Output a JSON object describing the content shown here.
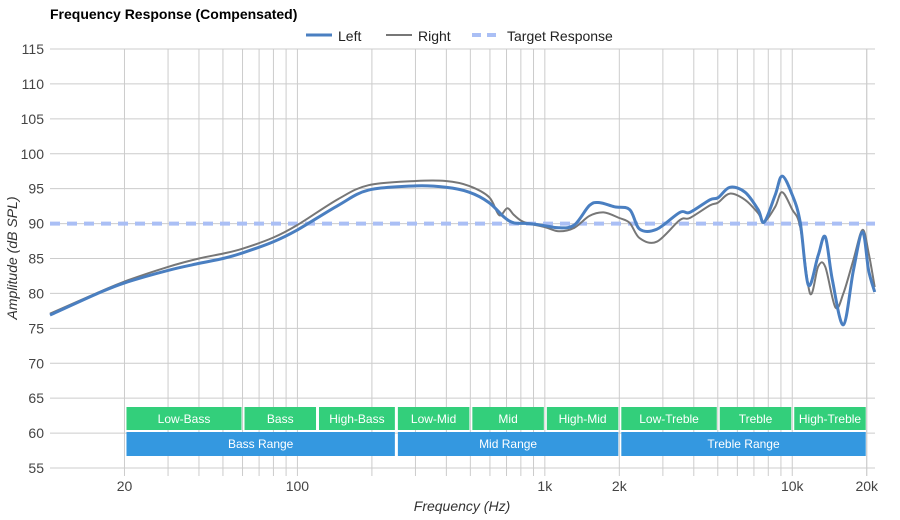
{
  "chart_data": {
    "type": "line",
    "title": "Frequency Response (Compensated)",
    "xlabel": "Frequency (Hz)",
    "ylabel": "Amplitude (dB SPL)",
    "xscale": "log",
    "xlim": [
      10,
      21600
    ],
    "ylim": [
      55,
      115
    ],
    "yticks": [
      55,
      60,
      65,
      70,
      75,
      80,
      85,
      90,
      95,
      100,
      105,
      110,
      115
    ],
    "xticks": [
      {
        "value": 20,
        "label": "20"
      },
      {
        "value": 100,
        "label": "100"
      },
      {
        "value": 1000,
        "label": "1k"
      },
      {
        "value": 2000,
        "label": "2k"
      },
      {
        "value": 10000,
        "label": "10k"
      },
      {
        "value": 20000,
        "label": "20k"
      }
    ],
    "grid": true,
    "legend_position": "top-center",
    "legend": [
      "Left",
      "Right",
      "Target Response"
    ],
    "series": [
      {
        "name": "Left",
        "color": "#4a7fc1",
        "points": [
          [
            10,
            76.9
          ],
          [
            15.6,
            80.0
          ],
          [
            20,
            81.5
          ],
          [
            30,
            83.3
          ],
          [
            40,
            84.3
          ],
          [
            50,
            85.0
          ],
          [
            60,
            85.8
          ],
          [
            80,
            87.4
          ],
          [
            100,
            89.1
          ],
          [
            146,
            92.6
          ],
          [
            194,
            94.8
          ],
          [
            300,
            95.4
          ],
          [
            398,
            95.2
          ],
          [
            494,
            94.5
          ],
          [
            595,
            93.0
          ],
          [
            686,
            90.9
          ],
          [
            752,
            90.1
          ],
          [
            866,
            90.0
          ],
          [
            1000,
            89.7
          ],
          [
            1140,
            89.4
          ],
          [
            1316,
            89.8
          ],
          [
            1515,
            92.6
          ],
          [
            1663,
            93.0
          ],
          [
            1915,
            92.4
          ],
          [
            2203,
            92.0
          ],
          [
            2417,
            89.2
          ],
          [
            2834,
            89.2
          ],
          [
            3513,
            91.6
          ],
          [
            3855,
            91.6
          ],
          [
            4645,
            93.4
          ],
          [
            5012,
            93.7
          ],
          [
            5600,
            95.2
          ],
          [
            6444,
            94.5
          ],
          [
            7278,
            92.0
          ],
          [
            7696,
            90.2
          ],
          [
            8531,
            94.1
          ],
          [
            9105,
            96.8
          ],
          [
            10000,
            94.1
          ],
          [
            10770,
            90.2
          ],
          [
            11610,
            81.2
          ],
          [
            12740,
            85.5
          ],
          [
            13600,
            88.1
          ],
          [
            14530,
            81.9
          ],
          [
            16100,
            75.5
          ],
          [
            17670,
            83.3
          ],
          [
            19230,
            88.8
          ],
          [
            20360,
            83.3
          ],
          [
            21540,
            80.2
          ]
        ]
      },
      {
        "name": "Right",
        "color": "#777777",
        "points": [
          [
            10,
            77.1
          ],
          [
            15.6,
            80.1
          ],
          [
            20,
            81.7
          ],
          [
            30,
            83.8
          ],
          [
            40,
            85.0
          ],
          [
            50,
            85.7
          ],
          [
            60,
            86.4
          ],
          [
            80,
            88.0
          ],
          [
            100,
            89.8
          ],
          [
            146,
            93.5
          ],
          [
            194,
            95.5
          ],
          [
            300,
            96.1
          ],
          [
            398,
            96.1
          ],
          [
            494,
            95.4
          ],
          [
            595,
            93.8
          ],
          [
            654,
            91.2
          ],
          [
            705,
            92.2
          ],
          [
            752,
            91.2
          ],
          [
            825,
            90.2
          ],
          [
            1000,
            89.5
          ],
          [
            1140,
            88.9
          ],
          [
            1316,
            89.4
          ],
          [
            1515,
            91.1
          ],
          [
            1730,
            91.6
          ],
          [
            2000,
            90.8
          ],
          [
            2203,
            90.1
          ],
          [
            2417,
            87.9
          ],
          [
            2834,
            87.4
          ],
          [
            3513,
            90.5
          ],
          [
            3855,
            90.8
          ],
          [
            4645,
            92.6
          ],
          [
            5012,
            93.0
          ],
          [
            5600,
            94.3
          ],
          [
            6444,
            93.4
          ],
          [
            7278,
            91.5
          ],
          [
            7696,
            90.2
          ],
          [
            8531,
            92.4
          ],
          [
            9105,
            94.5
          ],
          [
            10000,
            92.0
          ],
          [
            10770,
            89.5
          ],
          [
            11800,
            80.0
          ],
          [
            12740,
            83.9
          ],
          [
            13600,
            83.8
          ],
          [
            14940,
            78.0
          ],
          [
            16100,
            80.0
          ],
          [
            17670,
            84.8
          ],
          [
            19230,
            89.1
          ],
          [
            20360,
            85.8
          ],
          [
            21540,
            80.9
          ]
        ]
      },
      {
        "name": "Target Response",
        "color": "#aabff5",
        "value": 90
      }
    ],
    "bands": [
      {
        "label": "Low-Bass",
        "from": 20,
        "to": 60
      },
      {
        "label": "Bass",
        "from": 60,
        "to": 120
      },
      {
        "label": "High-Bass",
        "from": 120,
        "to": 250
      },
      {
        "label": "Low-Mid",
        "from": 250,
        "to": 500
      },
      {
        "label": "Mid",
        "from": 500,
        "to": 1000
      },
      {
        "label": "High-Mid",
        "from": 1000,
        "to": 2000
      },
      {
        "label": "Low-Treble",
        "from": 2000,
        "to": 5000
      },
      {
        "label": "Treble",
        "from": 5000,
        "to": 10000
      },
      {
        "label": "High-Treble",
        "from": 10000,
        "to": 20000
      }
    ],
    "ranges": [
      {
        "label": "Bass Range",
        "from": 20,
        "to": 250
      },
      {
        "label": "Mid Range",
        "from": 250,
        "to": 2000
      },
      {
        "label": "Treble Range",
        "from": 2000,
        "to": 20000
      }
    ],
    "band_color": "#33cf7b",
    "range_color": "#3498e0"
  }
}
